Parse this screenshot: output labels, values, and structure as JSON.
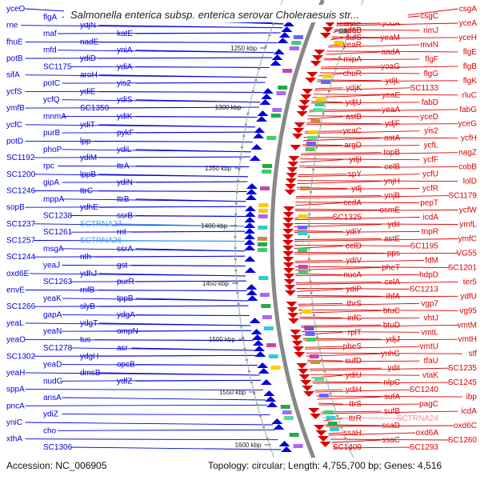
{
  "title": "Salmonella enterica subsp. enterica serovar Choleraesuis str...",
  "footer": {
    "accession": "Accession: NC_006905",
    "summary": "Topology: circular; Length: 4,755,700 bp; Genes: 4,516"
  },
  "colors": {
    "reverse_strand": "#0000dd",
    "forward_strand": "#dd0000",
    "rna": "#33aadd",
    "rna_forward": "#ff8899",
    "backbone": "#888888",
    "ruler_marks": "#339933"
  },
  "kbp_ticks": [
    "1250 kbp",
    "1300 kbp",
    "1350 kbp",
    "1400 kbp",
    "1450 kbp",
    "1500 kbp",
    "1550 kbp",
    "1600 kbp"
  ],
  "left_labels": [
    "yceO",
    "flgA",
    "rne",
    "maf",
    "fhuE",
    "mfd",
    "potB",
    "SC1175",
    "sifA",
    "potC",
    "ycfS",
    "ycfQ",
    "ymfB",
    "mnmA",
    "ycfC",
    "purB",
    "potD",
    "phoP",
    "SC1192",
    "rpc",
    "SC1200",
    "gipA",
    "SC1246",
    "mppA",
    "sopB",
    "SC1238",
    "SC1237",
    "SC1261",
    "SC1257",
    "msgA",
    "SC1244",
    "yeaJ",
    "oxd6E",
    "SC1263",
    "envE",
    "yeaK",
    "SC1266",
    "gapA",
    "yeaL",
    "yeaN",
    "yeaO",
    "SC1278",
    "SC1302",
    "yeaD",
    "yeaH",
    "nudG",
    "sppA",
    "ansA",
    "pncA",
    "ydiZ",
    "yniC",
    "cho",
    "xthA",
    "SC1306",
    "gdhA",
    "ydjM",
    "ydjN",
    "katE",
    "nadE",
    "yniA",
    "ydiD",
    "ydiA",
    "aroH",
    "yis2",
    "ydiE",
    "ydiS",
    "SC1350",
    "ydiK",
    "ydiT",
    "pykF",
    "lpp",
    "ydiL",
    "ydiM",
    "ttrA",
    "lppB",
    "ydiN",
    "ttrC",
    "ttrB",
    "ydhE",
    "ssrB",
    "SCTRNA27",
    "rnt",
    "SCTRNA26",
    "ssrA",
    "nth",
    "gst",
    "ydhJ",
    "purR",
    "rnfB",
    "tppB",
    "slyB",
    "ydgA",
    "ydgT",
    "ompN",
    "tus",
    "asr",
    "ydgH",
    "opcB",
    "dmsB",
    "ydfZ"
  ],
  "right_labels": [
    "csgA",
    "csgC",
    "yceA",
    "rimJ",
    "yceH",
    "mviN",
    "flgE",
    "flgF",
    "flgB",
    "flgG",
    "flgK",
    "SC1133",
    "rluC",
    "fabD",
    "fabG",
    "yceD",
    "yceG",
    "yis2",
    "ycfH",
    "ycfL",
    "nagZ",
    "ycfF",
    "cobB",
    "ycfU",
    "lolD",
    "ycfR",
    "SC1179",
    "pepT",
    "ycfW",
    "icdA",
    "ymfL",
    "tnpR",
    "ymfC",
    "SC1195",
    "VG55",
    "fdM",
    "SC1201",
    "hdpD",
    "ter5",
    "SC1213",
    "ydfU",
    "vgp7",
    "vg95",
    "vhtJ",
    "vmtM",
    "vmtL",
    "vmtH",
    "vmtU",
    "stf",
    "tfaU",
    "SC1235",
    "vtaK",
    "SC1245",
    "SC1240",
    "ibp",
    "pagC",
    "icdA",
    "SCTRNA24",
    "oxd6C",
    "oxd6A",
    "SC1260",
    "SC1293",
    "yeaS",
    "yceB",
    "yodA",
    "oxd6B",
    "yeaM",
    "yeaR",
    "aadA",
    "mipA",
    "yoaG",
    "chuR",
    "ydjL",
    "ydjK",
    "yeaE",
    "ydjU",
    "yeaA",
    "astB",
    "ydjF",
    "yeaC",
    "astA",
    "argD",
    "topB",
    "ydjI",
    "celB",
    "spY",
    "ynjH",
    "ydj",
    "ynjB",
    "cedA",
    "osmE",
    "SC1325",
    "ydiI",
    "ydiY",
    "astE",
    "celD",
    "pps",
    "ydiV",
    "pheT",
    "nucA",
    "celA",
    "ydiP",
    "ihfA",
    "thrS",
    "btuC",
    "infC",
    "btuD",
    "rplT",
    "ydjJ",
    "pheS",
    "ynhG",
    "sufD",
    "ydiI",
    "ydiU",
    "nlpC",
    "ydiH",
    "sufA",
    "ttrS",
    "sufB",
    "ttrR",
    "ssaD",
    "ssaH",
    "ssaC",
    "SC1409",
    "sufC",
    "ssaV",
    "ssaE",
    "ssaB",
    "sufS"
  ]
}
